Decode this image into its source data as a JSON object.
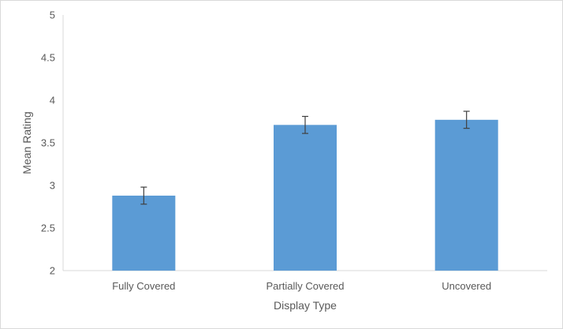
{
  "chart_data": {
    "type": "bar",
    "title": "",
    "xlabel": "Display Type",
    "ylabel": "Mean Rating",
    "categories": [
      "Fully Covered",
      "Partially Covered",
      "Uncovered"
    ],
    "values": [
      2.88,
      3.71,
      3.77
    ],
    "error": [
      0.1,
      0.1,
      0.1
    ],
    "ylim": [
      2,
      5
    ],
    "yticks": [
      "2",
      "2.5",
      "3",
      "3.5",
      "4",
      "4.5",
      "5"
    ],
    "grid": false,
    "legend": "none",
    "bar_color": "#5b9bd5",
    "axis_color": "#d9d9d9",
    "error_bar_color": "#404040"
  }
}
